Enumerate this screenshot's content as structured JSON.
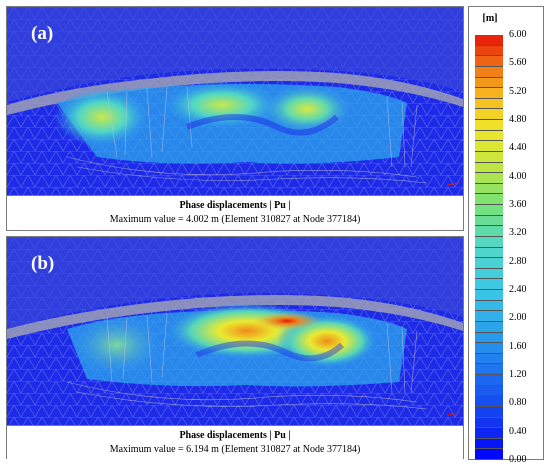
{
  "panels": [
    {
      "label": "(a)",
      "caption_title": "Phase displacements | Pu |",
      "caption_max": "Maximum value = 4.002 m (Element 310827 at Node 377184)"
    },
    {
      "label": "(b)",
      "caption_title": "Phase displacements | Pu |",
      "caption_max": "Maximum value = 6.194 m (Element 310827 at Node 377184)"
    }
  ],
  "legend": {
    "unit": "[m]",
    "ticks": [
      "6.00",
      "5.60",
      "5.20",
      "4.80",
      "4.40",
      "4.00",
      "3.60",
      "3.20",
      "2.80",
      "2.40",
      "2.00",
      "1.60",
      "1.20",
      "0.80",
      "0.40",
      "0.00"
    ]
  },
  "colors": {
    "background_blue": "#1e2fe6",
    "surface_gray": "#9a9a9a",
    "mesh_gray": "#b8b8c8",
    "peak_red": "#e8160c"
  }
}
